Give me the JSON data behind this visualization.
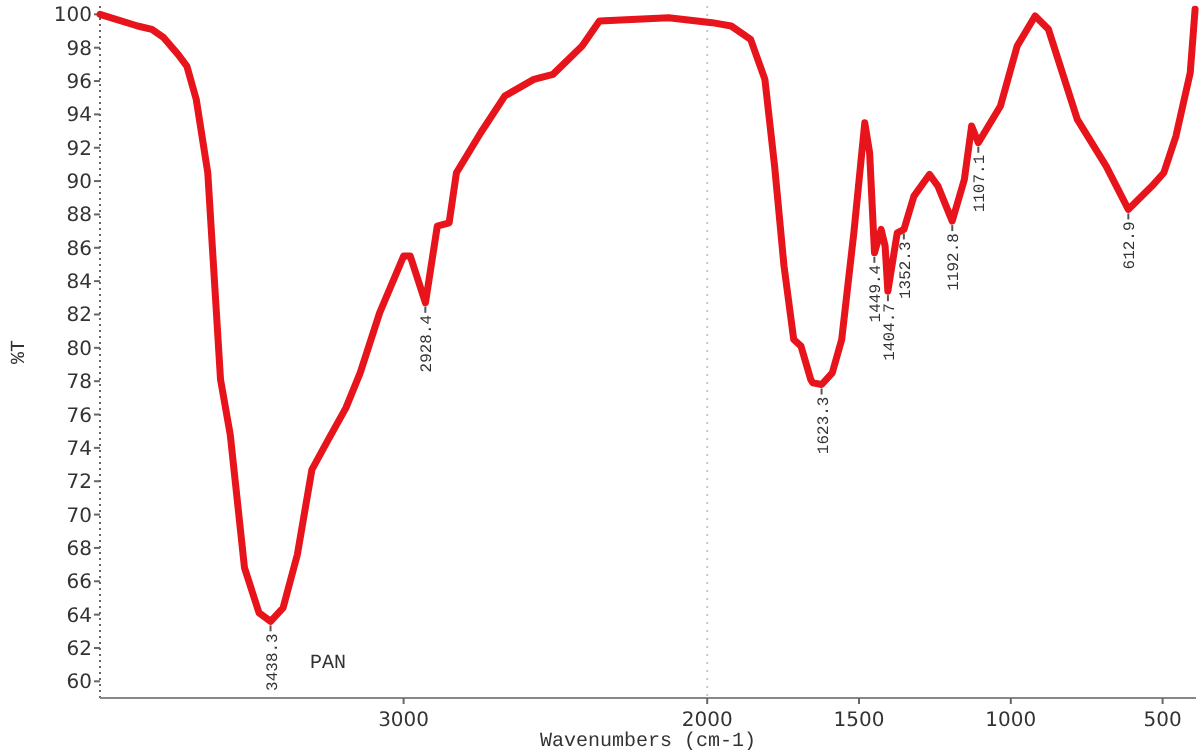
{
  "chart_data": {
    "type": "line",
    "xlabel": "Wavenumbers (cm-1)",
    "ylabel": "%T",
    "xlim": [
      4000,
      390
    ],
    "ylim": [
      59,
      100.5
    ],
    "xticks": [
      3000,
      2000,
      1500,
      1000,
      500
    ],
    "yticks": [
      60,
      62,
      64,
      66,
      68,
      70,
      72,
      74,
      76,
      78,
      80,
      82,
      84,
      86,
      88,
      90,
      92,
      94,
      96,
      98,
      100
    ],
    "grid": false,
    "line_style": "solid",
    "marker": "none",
    "ref_lines": [
      {
        "axis": "x",
        "value": 2000,
        "color": "#c8c8c8",
        "line_style": "dotted"
      }
    ],
    "series": [
      {
        "color": "#e8141b",
        "x": [
          4000,
          3876,
          3829,
          3790,
          3743,
          3714,
          3683,
          3645,
          3603,
          3571,
          3524,
          3476,
          3438,
          3397,
          3350,
          3302,
          3254,
          3190,
          3143,
          3079,
          3000,
          2978,
          2928,
          2889,
          2850,
          2826,
          2746,
          2667,
          2571,
          2508,
          2412,
          2355,
          2127,
          1984,
          1921,
          1857,
          1810,
          1778,
          1747,
          1715,
          1691,
          1659,
          1652,
          1623,
          1588,
          1557,
          1517,
          1481,
          1465,
          1449,
          1427,
          1414,
          1405,
          1374,
          1352,
          1319,
          1268,
          1240,
          1193,
          1153,
          1129,
          1107,
          1034,
          979,
          920,
          876,
          781,
          686,
          613,
          535,
          496,
          456,
          409,
          393
        ],
        "values": [
          100,
          99.3,
          99.1,
          98.6,
          97.6,
          96.9,
          94.9,
          90.5,
          78.1,
          74.8,
          66.8,
          64.1,
          63.6,
          64.4,
          67.6,
          72.7,
          74.3,
          76.4,
          78.5,
          82.1,
          85.5,
          85.5,
          82.7,
          87.3,
          87.5,
          90.5,
          92.9,
          95.1,
          96.1,
          96.4,
          98.1,
          99.6,
          99.8,
          99.5,
          99.3,
          98.5,
          96.1,
          90.9,
          84.9,
          80.5,
          80.1,
          78.1,
          77.9,
          77.8,
          78.5,
          80.5,
          86.9,
          93.5,
          91.7,
          85.7,
          87.1,
          86.1,
          83.4,
          86.9,
          87.1,
          89.1,
          90.4,
          89.7,
          87.6,
          90.1,
          93.3,
          92.3,
          94.5,
          98.1,
          99.9,
          99.1,
          93.7,
          90.9,
          88.3,
          89.7,
          90.5,
          92.7,
          96.5,
          100.3
        ]
      }
    ],
    "annotations": [
      {
        "text": "3438.3",
        "x": 3438.3,
        "y": 63.6
      },
      {
        "text": "2928.4",
        "x": 2928.4,
        "y": 82.7
      },
      {
        "text": "1623.3",
        "x": 1623.3,
        "y": 77.8
      },
      {
        "text": "1449.4",
        "x": 1449.4,
        "y": 85.7
      },
      {
        "text": "1404.7",
        "x": 1404.7,
        "y": 83.4
      },
      {
        "text": "1352.3",
        "x": 1352.3,
        "y": 87.1
      },
      {
        "text": "1192.8",
        "x": 1192.8,
        "y": 87.6
      },
      {
        "text": "1107.1",
        "x": 1107.1,
        "y": 92.3
      },
      {
        "text": "612.9",
        "x": 612.9,
        "y": 88.3
      },
      "PAN"
    ]
  }
}
